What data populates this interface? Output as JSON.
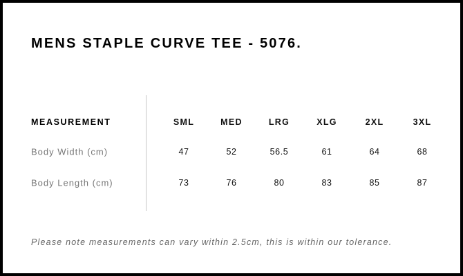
{
  "title": "MENS STAPLE CURVE TEE - 5076.",
  "table": {
    "header_label": "MEASUREMENT",
    "sizes": [
      "SML",
      "MED",
      "LRG",
      "XLG",
      "2XL",
      "3XL"
    ],
    "rows": [
      {
        "label": "Body Width (cm)",
        "values": [
          "47",
          "52",
          "56.5",
          "61",
          "64",
          "68"
        ]
      },
      {
        "label": "Body Length (cm)",
        "values": [
          "73",
          "76",
          "80",
          "83",
          "85",
          "87"
        ]
      }
    ]
  },
  "note": "Please note measurements can vary within 2.5cm, this is within our tolerance."
}
